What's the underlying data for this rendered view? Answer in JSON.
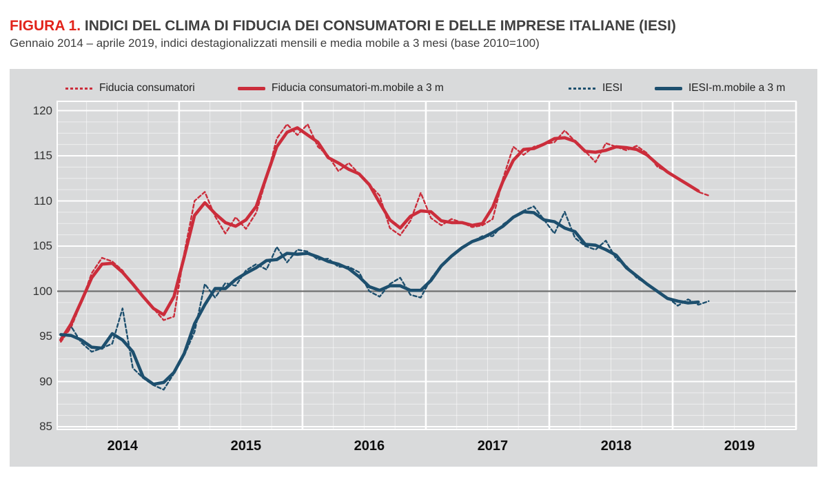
{
  "title": {
    "prefix": "FIGURA 1.",
    "text": "INDICI DEL CLIMA DI FIDUCIA DEI CONSUMATORI E DELLE IMPRESE ITALIANE (IESI)"
  },
  "subtitle": "Gennaio 2014 – aprile 2019, indici destagionalizzati mensili e media mobile a 3 mesi (base 2010=100)",
  "colors": {
    "title_red": "#e2231a",
    "red": "#cb2d3b",
    "blue": "#1d4f6e",
    "panel_bg": "#d9dadb",
    "grid_major": "#ffffff",
    "grid_minor": "rgba(255,255,255,0.55)",
    "ref_line": "#6f6f6f",
    "text_dark": "#3d3d3d"
  },
  "legend": [
    {
      "label": "Fiducia consumatori",
      "color": "red",
      "style": "dashed"
    },
    {
      "label": "Fiducia consumatori-m.mobile a 3 m",
      "color": "red",
      "style": "solid"
    },
    {
      "label": "IESI",
      "color": "blue",
      "style": "dashed"
    },
    {
      "label": "IESI-m.mobile a 3 m",
      "color": "blue",
      "style": "solid"
    }
  ],
  "chart_data": {
    "type": "line",
    "title": "Indici del clima di fiducia dei consumatori e delle imprese italiane (IESI)",
    "x_start": "2014-01",
    "x_end": "2019-04",
    "years": [
      2014,
      2015,
      2016,
      2017,
      2018,
      2019
    ],
    "y_axis": {
      "min": 85,
      "max": 120,
      "step": 5,
      "minor_step": 1.25,
      "ref_line": 100
    },
    "grid": {
      "vertical_minor": "quarterly",
      "vertical_major": "yearly"
    },
    "legend_position": "top",
    "series": [
      {
        "name": "Fiducia consumatori",
        "color": "red",
        "style": "dashed",
        "values": [
          94.4,
          96.0,
          98.8,
          102.0,
          103.7,
          103.3,
          102.3,
          100.7,
          99.4,
          98.1,
          96.8,
          97.2,
          104.2,
          110.0,
          111.0,
          108.3,
          106.4,
          108.2,
          106.9,
          108.7,
          112.5,
          116.9,
          118.5,
          117.3,
          118.5,
          116.0,
          115.0,
          113.3,
          114.2,
          113.0,
          111.8,
          110.6,
          107.0,
          106.2,
          107.8,
          110.9,
          108.1,
          107.3,
          108.0,
          107.6,
          107.1,
          107.3,
          108.0,
          112.5,
          116.0,
          115.1,
          116.0,
          116.3,
          116.5,
          117.8,
          116.6,
          115.5,
          114.3,
          116.4,
          116.0,
          115.6,
          116.1,
          115.3,
          113.8,
          113.2,
          112.5,
          111.8,
          111.0,
          110.6
        ]
      },
      {
        "name": "Fiducia consumatori-m.mobile a 3 m",
        "color": "red",
        "style": "solid",
        "values": [
          94.6,
          96.4,
          98.9,
          101.5,
          103.0,
          103.1,
          102.1,
          100.8,
          99.4,
          98.1,
          97.4,
          99.4,
          103.8,
          108.4,
          109.8,
          108.6,
          107.6,
          107.2,
          107.9,
          109.4,
          112.7,
          116.0,
          117.6,
          118.1,
          117.3,
          116.5,
          114.8,
          114.2,
          113.5,
          113.0,
          111.8,
          109.8,
          107.9,
          107.0,
          108.3,
          108.9,
          108.8,
          107.8,
          107.6,
          107.6,
          107.3,
          107.5,
          109.3,
          112.2,
          114.5,
          115.7,
          115.8,
          116.3,
          116.9,
          117.0,
          116.6,
          115.5,
          115.4,
          115.6,
          116.0,
          115.9,
          115.7,
          115.1,
          114.1,
          113.2,
          112.5,
          111.8,
          111.1
        ]
      },
      {
        "name": "IESI",
        "color": "blue",
        "style": "dashed",
        "values": [
          94.8,
          96.1,
          94.3,
          93.3,
          93.7,
          94.2,
          98.1,
          91.5,
          90.4,
          89.6,
          89.1,
          90.9,
          92.9,
          95.5,
          100.8,
          99.3,
          100.9,
          100.6,
          102.3,
          103.0,
          102.4,
          104.9,
          103.2,
          104.6,
          104.4,
          103.5,
          103.6,
          102.7,
          102.7,
          102.1,
          100.0,
          99.4,
          100.8,
          101.5,
          99.6,
          99.3,
          101.4,
          102.9,
          104.0,
          104.9,
          105.5,
          106.1,
          106.1,
          107.4,
          108.2,
          108.9,
          109.4,
          107.9,
          106.4,
          108.8,
          105.9,
          105.0,
          104.6,
          105.6,
          103.6,
          102.8,
          101.5,
          100.8,
          100.0,
          99.3,
          98.4,
          99.1,
          98.5,
          98.9
        ]
      },
      {
        "name": "IESI-m.mobile a 3 m",
        "color": "blue",
        "style": "solid",
        "values": [
          95.2,
          95.1,
          94.6,
          93.8,
          93.7,
          95.3,
          94.6,
          93.3,
          90.5,
          89.7,
          89.9,
          91.0,
          93.1,
          96.4,
          98.5,
          100.3,
          100.3,
          101.3,
          102.0,
          102.6,
          103.4,
          103.5,
          104.2,
          104.1,
          104.2,
          103.8,
          103.3,
          103.0,
          102.5,
          101.6,
          100.5,
          100.1,
          100.6,
          100.6,
          100.1,
          100.1,
          101.2,
          102.8,
          103.9,
          104.8,
          105.5,
          105.9,
          106.5,
          107.2,
          108.2,
          108.8,
          108.7,
          107.9,
          107.7,
          107.0,
          106.6,
          105.2,
          105.1,
          104.6,
          104.0,
          102.6,
          101.7,
          100.8,
          100.0,
          99.2,
          98.9,
          98.7,
          98.8
        ]
      }
    ]
  }
}
